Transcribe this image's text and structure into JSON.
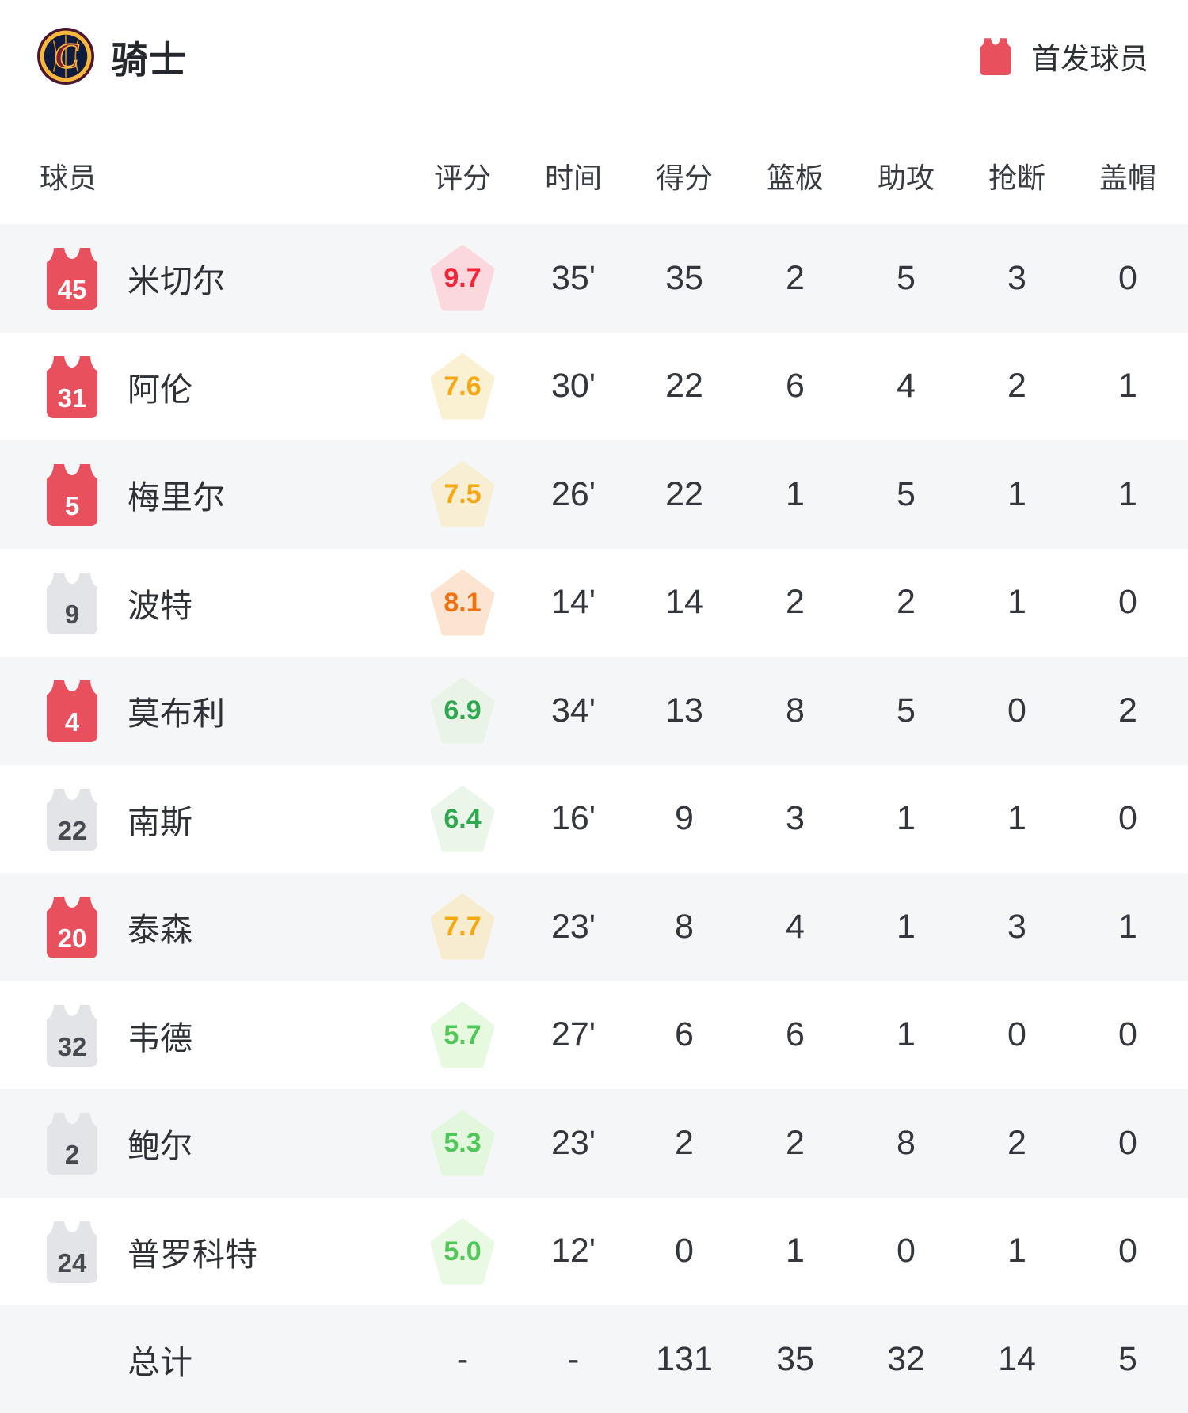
{
  "header": {
    "team_name": "骑士",
    "team_logo": "cleveland-cavaliers-logo",
    "legend_label": "首发球员",
    "starter_jersey_color": "#e8505e"
  },
  "table": {
    "columns": {
      "player": "球员",
      "rating": "评分",
      "minutes": "时间",
      "points": "得分",
      "rebounds": "篮板",
      "assists": "助攻",
      "steals": "抢断",
      "blocks": "盖帽"
    },
    "jersey_colors": {
      "starter": "#e8505e",
      "bench": "#e3e4e7"
    },
    "players": [
      {
        "number": "45",
        "starter": true,
        "name": "米切尔",
        "rating": "9.7",
        "rating_color": "#f42537",
        "rating_bg": "#fad8dd",
        "minutes": "35'",
        "points": "35",
        "rebounds": "2",
        "assists": "5",
        "steals": "3",
        "blocks": "0"
      },
      {
        "number": "31",
        "starter": true,
        "name": "阿伦",
        "rating": "7.6",
        "rating_color": "#f7a70f",
        "rating_bg": "#faf0d2",
        "minutes": "30'",
        "points": "22",
        "rebounds": "6",
        "assists": "4",
        "steals": "2",
        "blocks": "1"
      },
      {
        "number": "5",
        "starter": true,
        "name": "梅里尔",
        "rating": "7.5",
        "rating_color": "#f7a70f",
        "rating_bg": "#f7eed3",
        "minutes": "26'",
        "points": "22",
        "rebounds": "1",
        "assists": "5",
        "steals": "1",
        "blocks": "1"
      },
      {
        "number": "9",
        "starter": false,
        "name": "波特",
        "rating": "8.1",
        "rating_color": "#f2700d",
        "rating_bg": "#fce5d0",
        "minutes": "14'",
        "points": "14",
        "rebounds": "2",
        "assists": "2",
        "steals": "1",
        "blocks": "0"
      },
      {
        "number": "4",
        "starter": true,
        "name": "莫布利",
        "rating": "6.9",
        "rating_color": "#2fa950",
        "rating_bg": "#e9f4e7",
        "minutes": "34'",
        "points": "13",
        "rebounds": "8",
        "assists": "5",
        "steals": "0",
        "blocks": "2"
      },
      {
        "number": "22",
        "starter": false,
        "name": "南斯",
        "rating": "6.4",
        "rating_color": "#2fa950",
        "rating_bg": "#eaf6ea",
        "minutes": "16'",
        "points": "9",
        "rebounds": "3",
        "assists": "1",
        "steals": "1",
        "blocks": "0"
      },
      {
        "number": "20",
        "starter": true,
        "name": "泰森",
        "rating": "7.7",
        "rating_color": "#f7a70f",
        "rating_bg": "#f8ecd0",
        "minutes": "23'",
        "points": "8",
        "rebounds": "4",
        "assists": "1",
        "steals": "3",
        "blocks": "1"
      },
      {
        "number": "32",
        "starter": false,
        "name": "韦德",
        "rating": "5.7",
        "rating_color": "#4fc857",
        "rating_bg": "#e7fadf",
        "minutes": "27'",
        "points": "6",
        "rebounds": "6",
        "assists": "1",
        "steals": "0",
        "blocks": "0"
      },
      {
        "number": "2",
        "starter": false,
        "name": "鲍尔",
        "rating": "5.3",
        "rating_color": "#4fc857",
        "rating_bg": "#e2f7dd",
        "minutes": "23'",
        "points": "2",
        "rebounds": "2",
        "assists": "8",
        "steals": "2",
        "blocks": "0"
      },
      {
        "number": "24",
        "starter": false,
        "name": "普罗科特",
        "rating": "5.0",
        "rating_color": "#4fc857",
        "rating_bg": "#e9f9e3",
        "minutes": "12'",
        "points": "0",
        "rebounds": "1",
        "assists": "0",
        "steals": "1",
        "blocks": "0"
      }
    ],
    "totals": {
      "label": "总计",
      "rating": "-",
      "minutes": "-",
      "points": "131",
      "rebounds": "35",
      "assists": "32",
      "steals": "14",
      "blocks": "5"
    }
  }
}
